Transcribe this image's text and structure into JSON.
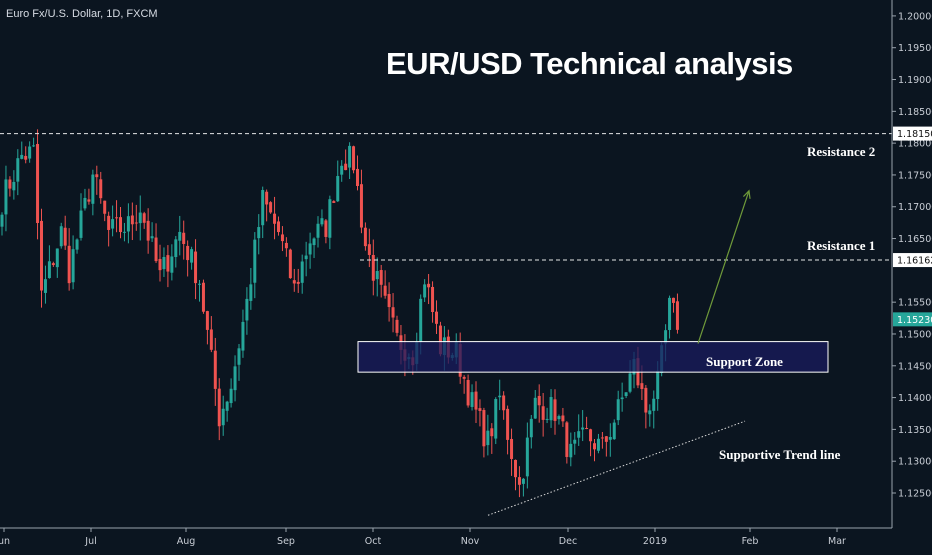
{
  "header": "Euro Fx/U.S. Dollar, 1D, FXCM",
  "title": "EUR/USD Technical analysis",
  "annotations": {
    "resistance2": "Resistance 2",
    "resistance1": "Resistance 1",
    "support_zone": "Support Zone",
    "trend_line": "Supportive Trend line"
  },
  "colors": {
    "background": "#0b1520",
    "bull": "#26a69a",
    "bear": "#ef5350",
    "support_fill": "#1a1b5e",
    "last_price_bg": "#26a69a"
  },
  "chart_data": {
    "type": "candlestick",
    "symbol": "Euro Fx/U.S. Dollar",
    "interval": "1D",
    "source": "FXCM",
    "title": "EUR/USD Technical analysis",
    "ylim": [
      1.1195,
      1.2025
    ],
    "x_ticks": [
      "un",
      "Jul",
      "Aug",
      "Sep",
      "Oct",
      "Nov",
      "Dec",
      "2019",
      "Feb",
      "Mar"
    ],
    "y_ticks": [
      "1.20000",
      "1.19500",
      "1.19000",
      "1.18500",
      "1.18000",
      "1.17500",
      "1.17000",
      "1.16500",
      "1.15500",
      "1.15000",
      "1.14500",
      "1.14000",
      "1.13500",
      "1.13000",
      "1.12500"
    ],
    "price_labels": [
      {
        "name": "resistance2",
        "value": 1.1815,
        "text": "1.18150"
      },
      {
        "name": "resistance1",
        "value": 1.16162,
        "text": "1.16162"
      },
      {
        "name": "last",
        "value": 1.1523,
        "text": "1.15230"
      }
    ],
    "support_zone": {
      "low": 1.144,
      "high": 1.1488
    },
    "trend_line": {
      "from": 1.1215,
      "to": 1.1363
    },
    "projection": {
      "from": 1.1485,
      "to": 1.1725
    },
    "waypoints": [
      [
        0,
        1.171
      ],
      [
        5,
        1.178
      ],
      [
        8,
        1.1785
      ],
      [
        10,
        1.156
      ],
      [
        15,
        1.166
      ],
      [
        17,
        1.16
      ],
      [
        23,
        1.175
      ],
      [
        27,
        1.166
      ],
      [
        32,
        1.167
      ],
      [
        35,
        1.17
      ],
      [
        40,
        1.159
      ],
      [
        45,
        1.166
      ],
      [
        50,
        1.1585
      ],
      [
        55,
        1.137
      ],
      [
        58,
        1.142
      ],
      [
        62,
        1.155
      ],
      [
        66,
        1.171
      ],
      [
        70,
        1.166
      ],
      [
        74,
        1.157
      ],
      [
        78,
        1.165
      ],
      [
        82,
        1.167
      ],
      [
        86,
        1.178
      ],
      [
        89,
        1.177
      ],
      [
        92,
        1.164
      ],
      [
        96,
        1.156
      ],
      [
        100,
        1.149
      ],
      [
        104,
        1.147
      ],
      [
        107,
        1.159
      ],
      [
        111,
        1.148
      ],
      [
        115,
        1.147
      ],
      [
        119,
        1.139
      ],
      [
        123,
        1.133
      ],
      [
        126,
        1.14
      ],
      [
        131,
        1.126
      ],
      [
        135,
        1.139
      ],
      [
        140,
        1.138
      ],
      [
        144,
        1.131
      ],
      [
        148,
        1.134
      ],
      [
        152,
        1.132
      ],
      [
        156,
        1.138
      ],
      [
        160,
        1.145
      ],
      [
        163,
        1.138
      ],
      [
        166,
        1.142
      ],
      [
        169,
        1.154
      ],
      [
        171,
        1.152
      ]
    ]
  }
}
